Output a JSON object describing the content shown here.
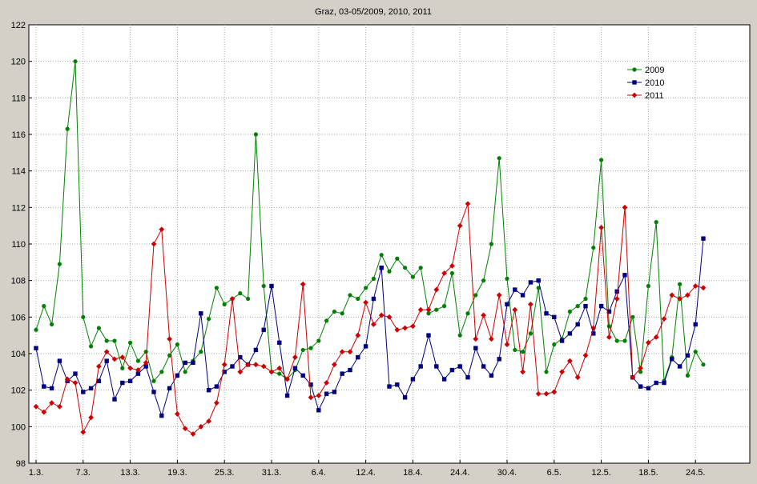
{
  "colors": {
    "background": "#d4d0c8",
    "plot_background": "#ffffff",
    "grid": "#a8a8a8"
  },
  "chart_data": {
    "type": "line",
    "title": "Graz, 03-05/2009, 2010, 2011",
    "xlabel": "",
    "ylabel": "",
    "ylim": [
      98,
      122
    ],
    "yticks": [
      98,
      100,
      102,
      104,
      106,
      108,
      110,
      112,
      114,
      116,
      118,
      120,
      122
    ],
    "x_tick_labels": [
      "1.3.",
      "7.3.",
      "13.3.",
      "19.3.",
      "25.3.",
      "31.3.",
      "6.4.",
      "12.4.",
      "18.4.",
      "24.4.",
      "30.4.",
      "6.5.",
      "12.5.",
      "18.5.",
      "24.5."
    ],
    "x_tick_step": 6,
    "grid": true,
    "legend_position": "top-right",
    "series": [
      {
        "name": "2009",
        "color": "#008000",
        "marker": "circle",
        "values": [
          105.3,
          106.6,
          105.6,
          108.9,
          116.3,
          120.0,
          106.0,
          104.4,
          105.4,
          104.7,
          104.7,
          103.2,
          104.6,
          103.6,
          104.1,
          102.5,
          103.0,
          103.9,
          104.5,
          103.0,
          103.6,
          104.1,
          105.9,
          107.6,
          106.7,
          107.0,
          107.3,
          107.0,
          116.0,
          107.7,
          103.0,
          102.9,
          102.6,
          103.1,
          104.2,
          104.3,
          104.7,
          105.8,
          106.3,
          106.2,
          107.2,
          107.0,
          107.6,
          108.1,
          109.4,
          108.5,
          109.2,
          108.7,
          108.2,
          108.7,
          106.2,
          106.4,
          106.6,
          108.4,
          105.0,
          106.2,
          107.2,
          108.0,
          110.0,
          114.7,
          108.1,
          104.2,
          104.1,
          105.1,
          107.6,
          103.0,
          104.5,
          104.8,
          106.3,
          106.6,
          107.0,
          109.8,
          114.6,
          105.5,
          104.7,
          104.7,
          106.0,
          103.0,
          107.7,
          111.2,
          102.5,
          103.8,
          107.8,
          102.8,
          104.1,
          103.4
        ]
      },
      {
        "name": "2010",
        "color": "#000080",
        "marker": "square",
        "values": [
          104.3,
          102.2,
          102.1,
          103.6,
          102.5,
          102.9,
          101.9,
          102.1,
          102.5,
          103.6,
          101.5,
          102.4,
          102.5,
          102.9,
          103.3,
          101.9,
          100.6,
          102.1,
          102.8,
          103.5,
          103.5,
          106.2,
          102.0,
          102.2,
          103.0,
          103.3,
          103.8,
          103.4,
          104.2,
          105.3,
          107.7,
          104.6,
          101.7,
          103.2,
          102.8,
          102.3,
          100.9,
          101.8,
          101.9,
          102.9,
          103.1,
          103.8,
          104.4,
          107.0,
          108.7,
          102.2,
          102.3,
          101.6,
          102.6,
          103.3,
          105.0,
          103.3,
          102.6,
          103.1,
          103.3,
          102.7,
          104.3,
          103.3,
          102.8,
          103.7,
          106.7,
          107.5,
          107.2,
          107.9,
          108.0,
          106.2,
          106.0,
          104.7,
          105.1,
          105.6,
          106.6,
          105.1,
          106.6,
          106.3,
          107.4,
          108.3,
          102.7,
          102.2,
          102.1,
          102.4,
          102.4,
          103.7,
          103.3,
          103.9,
          105.6,
          110.3
        ]
      },
      {
        "name": "2011",
        "color": "#cc0000",
        "marker": "diamond",
        "values": [
          101.1,
          100.8,
          101.3,
          101.1,
          102.6,
          102.4,
          99.7,
          100.5,
          103.3,
          104.1,
          103.7,
          103.8,
          103.2,
          103.1,
          103.5,
          110.0,
          110.8,
          104.8,
          100.7,
          99.9,
          99.6,
          100.0,
          100.3,
          101.3,
          103.4,
          107.0,
          103.0,
          103.4,
          103.4,
          103.3,
          103.0,
          103.2,
          102.6,
          103.8,
          107.8,
          101.6,
          101.7,
          102.4,
          103.4,
          104.1,
          104.1,
          105.0,
          106.8,
          105.6,
          106.1,
          106.0,
          105.3,
          105.4,
          105.5,
          106.4,
          106.4,
          107.5,
          108.4,
          108.8,
          111.0,
          112.2,
          104.8,
          106.1,
          104.8,
          107.2,
          104.5,
          106.4,
          103.0,
          106.7,
          101.8,
          101.8,
          101.9,
          103.0,
          103.6,
          102.7,
          103.9,
          105.4,
          110.9,
          104.9,
          107.0,
          112.0,
          102.7,
          103.2,
          104.6,
          104.9,
          105.9,
          107.2,
          107.0,
          107.2,
          107.7,
          107.6
        ]
      }
    ]
  }
}
